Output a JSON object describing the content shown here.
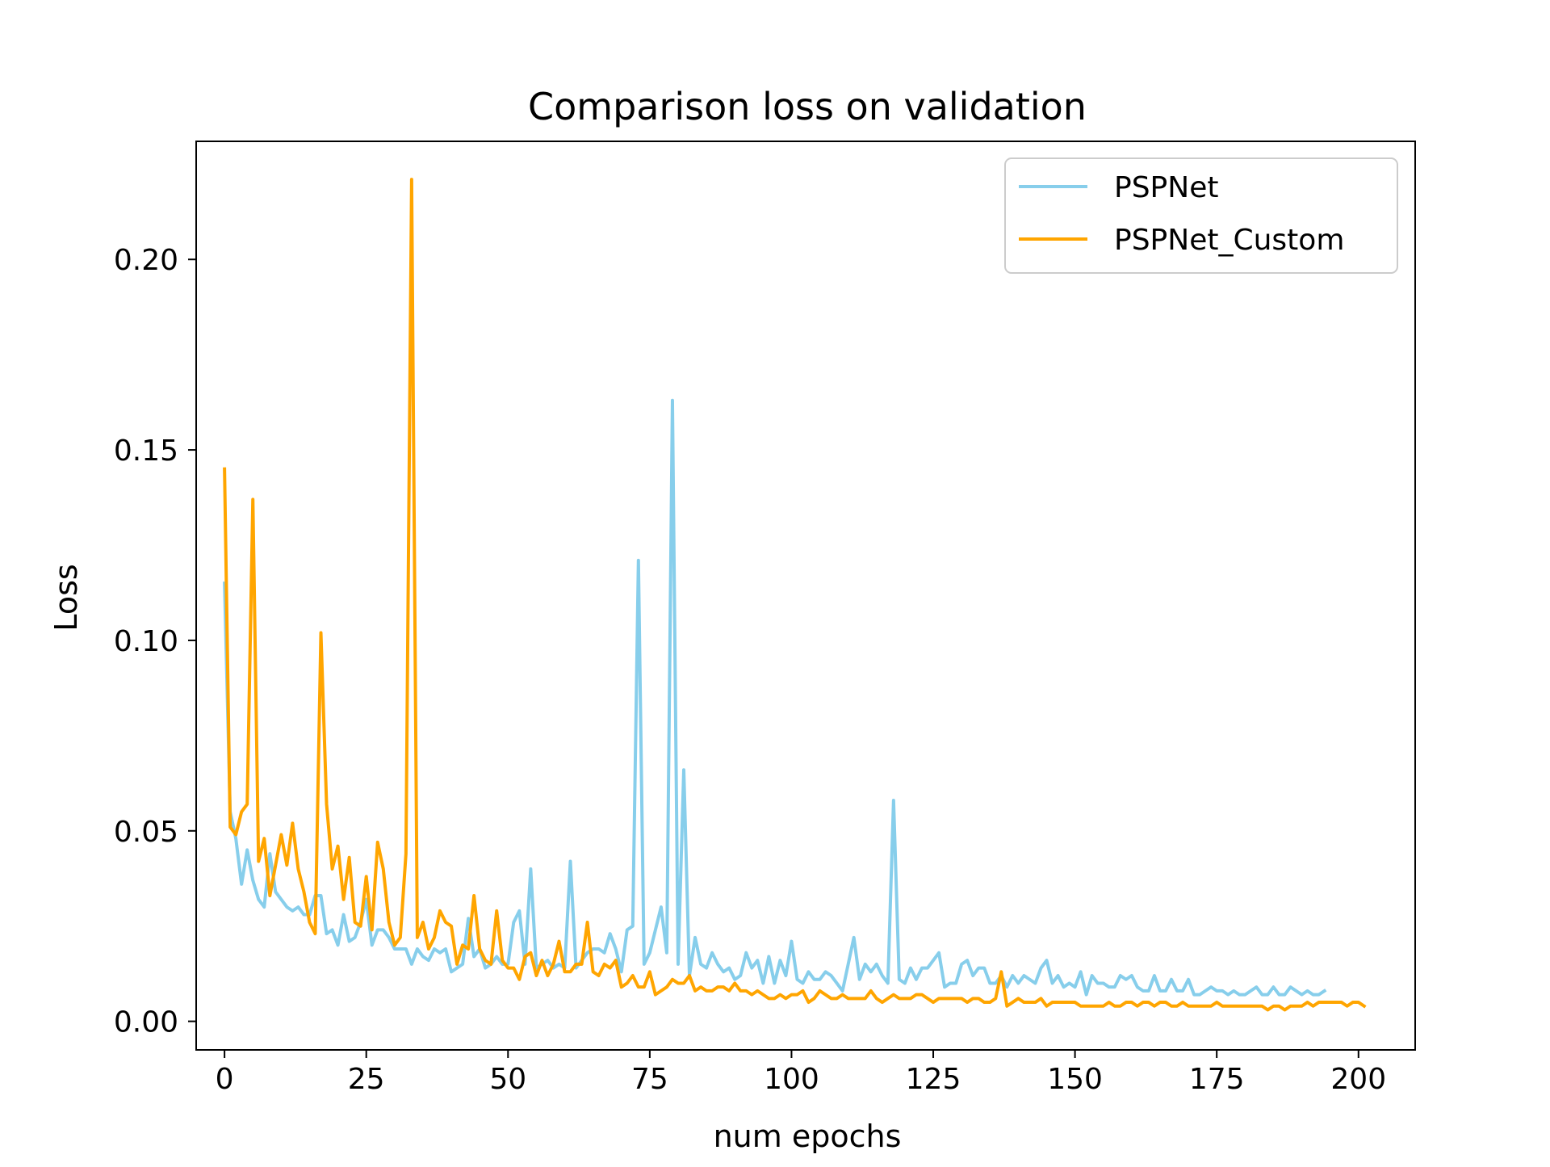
{
  "chart_data": {
    "type": "line",
    "title": "Comparison loss on validation",
    "xlabel": "num epochs",
    "ylabel": "Loss",
    "xlim": [
      -5,
      210
    ],
    "ylim": [
      -0.0075,
      0.231
    ],
    "xticks": [
      0,
      25,
      50,
      75,
      100,
      125,
      150,
      175,
      200
    ],
    "xtick_labels": [
      "0",
      "25",
      "50",
      "75",
      "100",
      "125",
      "150",
      "175",
      "200"
    ],
    "yticks": [
      0.0,
      0.05,
      0.1,
      0.15,
      0.2
    ],
    "ytick_labels": [
      "0.00",
      "0.05",
      "0.10",
      "0.15",
      "0.20"
    ],
    "grid": false,
    "legend_position": "top-right",
    "series": [
      {
        "name": "PSPNet",
        "color": "#87CEEB",
        "values": [
          0.115,
          0.055,
          0.048,
          0.036,
          0.045,
          0.037,
          0.032,
          0.03,
          0.044,
          0.034,
          0.032,
          0.03,
          0.029,
          0.03,
          0.028,
          0.028,
          0.033,
          0.033,
          0.023,
          0.024,
          0.02,
          0.028,
          0.021,
          0.022,
          0.026,
          0.032,
          0.02,
          0.024,
          0.024,
          0.022,
          0.019,
          0.019,
          0.019,
          0.015,
          0.019,
          0.017,
          0.016,
          0.019,
          0.018,
          0.019,
          0.013,
          0.014,
          0.015,
          0.027,
          0.017,
          0.019,
          0.014,
          0.015,
          0.017,
          0.015,
          0.015,
          0.026,
          0.029,
          0.015,
          0.04,
          0.014,
          0.015,
          0.016,
          0.014,
          0.015,
          0.014,
          0.042,
          0.014,
          0.016,
          0.018,
          0.019,
          0.019,
          0.018,
          0.023,
          0.019,
          0.013,
          0.024,
          0.025,
          0.121,
          0.015,
          0.018,
          0.024,
          0.03,
          0.018,
          0.163,
          0.015,
          0.066,
          0.012,
          0.022,
          0.015,
          0.014,
          0.018,
          0.015,
          0.013,
          0.014,
          0.011,
          0.012,
          0.018,
          0.014,
          0.016,
          0.01,
          0.017,
          0.01,
          0.016,
          0.012,
          0.021,
          0.011,
          0.01,
          0.013,
          0.011,
          0.011,
          0.013,
          0.012,
          0.01,
          0.008,
          0.015,
          0.022,
          0.011,
          0.015,
          0.013,
          0.015,
          0.012,
          0.01,
          0.058,
          0.011,
          0.01,
          0.014,
          0.011,
          0.014,
          0.014,
          0.016,
          0.018,
          0.009,
          0.01,
          0.01,
          0.015,
          0.016,
          0.012,
          0.014,
          0.014,
          0.01,
          0.01,
          0.012,
          0.009,
          0.012,
          0.01,
          0.012,
          0.011,
          0.01,
          0.014,
          0.016,
          0.01,
          0.012,
          0.009,
          0.01,
          0.009,
          0.013,
          0.007,
          0.012,
          0.01,
          0.01,
          0.009,
          0.009,
          0.012,
          0.011,
          0.012,
          0.009,
          0.008,
          0.008,
          0.012,
          0.008,
          0.008,
          0.011,
          0.008,
          0.008,
          0.011,
          0.007,
          0.007,
          0.008,
          0.009,
          0.008,
          0.008,
          0.007,
          0.008,
          0.007,
          0.007,
          0.008,
          0.009,
          0.007,
          0.007,
          0.009,
          0.007,
          0.007,
          0.009,
          0.008,
          0.007,
          0.008,
          0.007,
          0.007,
          0.008
        ],
        "x_start": 0,
        "x_step": 1
      },
      {
        "name": "PSPNet_Custom",
        "color": "#FFA500",
        "values": [
          0.145,
          0.051,
          0.049,
          0.055,
          0.057,
          0.137,
          0.042,
          0.048,
          0.033,
          0.041,
          0.049,
          0.041,
          0.052,
          0.04,
          0.034,
          0.026,
          0.023,
          0.102,
          0.057,
          0.04,
          0.046,
          0.032,
          0.043,
          0.026,
          0.025,
          0.038,
          0.024,
          0.047,
          0.04,
          0.026,
          0.02,
          0.022,
          0.044,
          0.221,
          0.022,
          0.026,
          0.019,
          0.022,
          0.029,
          0.026,
          0.025,
          0.015,
          0.02,
          0.019,
          0.033,
          0.019,
          0.016,
          0.015,
          0.029,
          0.016,
          0.014,
          0.014,
          0.011,
          0.017,
          0.018,
          0.012,
          0.016,
          0.012,
          0.015,
          0.021,
          0.013,
          0.013,
          0.015,
          0.015,
          0.026,
          0.013,
          0.012,
          0.015,
          0.014,
          0.016,
          0.009,
          0.01,
          0.012,
          0.009,
          0.009,
          0.013,
          0.007,
          0.008,
          0.009,
          0.011,
          0.01,
          0.01,
          0.012,
          0.008,
          0.009,
          0.008,
          0.008,
          0.009,
          0.009,
          0.008,
          0.01,
          0.008,
          0.008,
          0.007,
          0.008,
          0.007,
          0.006,
          0.006,
          0.007,
          0.006,
          0.007,
          0.007,
          0.008,
          0.005,
          0.006,
          0.008,
          0.007,
          0.006,
          0.006,
          0.007,
          0.006,
          0.006,
          0.006,
          0.006,
          0.008,
          0.006,
          0.005,
          0.006,
          0.007,
          0.006,
          0.006,
          0.006,
          0.007,
          0.007,
          0.006,
          0.005,
          0.006,
          0.006,
          0.006,
          0.006,
          0.006,
          0.005,
          0.006,
          0.006,
          0.005,
          0.005,
          0.006,
          0.013,
          0.004,
          0.005,
          0.006,
          0.005,
          0.005,
          0.005,
          0.006,
          0.004,
          0.005,
          0.005,
          0.005,
          0.005,
          0.005,
          0.004,
          0.004,
          0.004,
          0.004,
          0.004,
          0.005,
          0.004,
          0.004,
          0.005,
          0.005,
          0.004,
          0.005,
          0.005,
          0.004,
          0.005,
          0.005,
          0.004,
          0.004,
          0.005,
          0.004,
          0.004,
          0.004,
          0.004,
          0.004,
          0.005,
          0.004,
          0.004,
          0.004,
          0.004,
          0.004,
          0.004,
          0.004,
          0.004,
          0.003,
          0.004,
          0.004,
          0.003,
          0.004,
          0.004,
          0.004,
          0.005,
          0.004,
          0.005,
          0.005,
          0.005,
          0.005,
          0.005,
          0.004,
          0.005,
          0.005,
          0.004
        ],
        "x_start": 0,
        "x_step": 1
      }
    ]
  }
}
